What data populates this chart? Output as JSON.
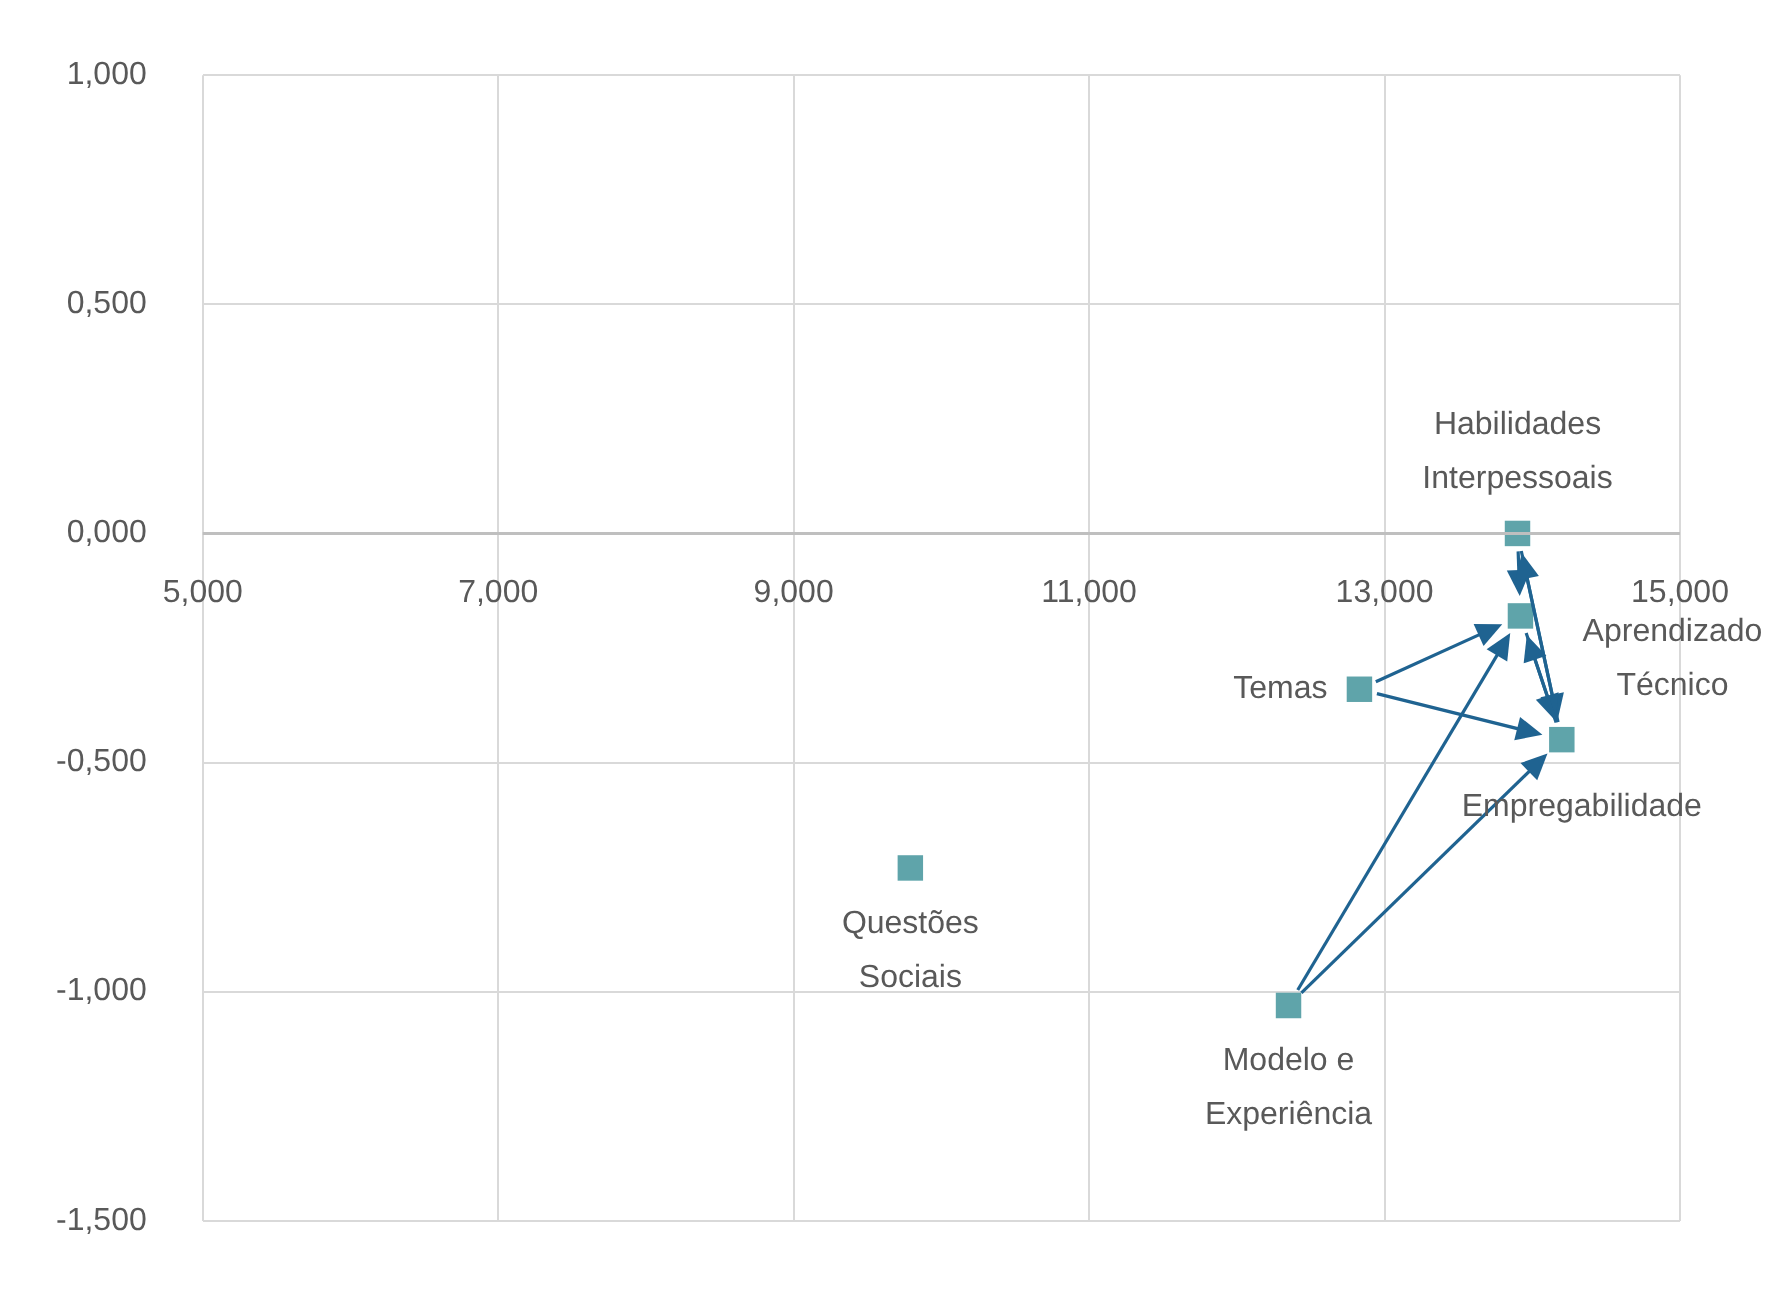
{
  "chart_data": {
    "type": "scatter",
    "marker": "square",
    "legend": false,
    "grid": true,
    "series": [
      {
        "name": "Habilidades Interpessoais",
        "color": "#5fa4aa",
        "x": [
          13.9
        ],
        "values": [
          0.0
        ]
      },
      {
        "name": "Aprendizado Técnico",
        "color": "#5fa4aa",
        "x": [
          13.92
        ],
        "values": [
          -0.18
        ]
      },
      {
        "name": "Temas",
        "color": "#5fa4aa",
        "x": [
          12.83
        ],
        "values": [
          -0.34
        ]
      },
      {
        "name": "Empregabilidade",
        "color": "#5fa4aa",
        "x": [
          14.2
        ],
        "values": [
          -0.45
        ]
      },
      {
        "name": "Questões Sociais",
        "color": "#5fa4aa",
        "x": [
          9.79
        ],
        "values": [
          -0.73
        ]
      },
      {
        "name": "Modelo e Experiência",
        "color": "#5fa4aa",
        "x": [
          12.35
        ],
        "values": [
          -1.03
        ]
      }
    ],
    "xlim": [
      5,
      15
    ],
    "xticks": [
      {
        "value": 5,
        "label": "5,000"
      },
      {
        "value": 7,
        "label": "7,000"
      },
      {
        "value": 9,
        "label": "9,000"
      },
      {
        "value": 11,
        "label": "11,000"
      },
      {
        "value": 13,
        "label": "13,000"
      },
      {
        "value": 15,
        "label": "15,000"
      }
    ],
    "ylim": [
      -1.5,
      1
    ],
    "yticks": [
      {
        "value": -1.5,
        "label": "-1,500"
      },
      {
        "value": -1,
        "label": "-1,000"
      },
      {
        "value": -0.5,
        "label": "-0,500"
      },
      {
        "value": 0,
        "label": "0,000"
      },
      {
        "value": 0.5,
        "label": "0,500"
      },
      {
        "value": 1,
        "label": "1,000"
      }
    ]
  }
}
